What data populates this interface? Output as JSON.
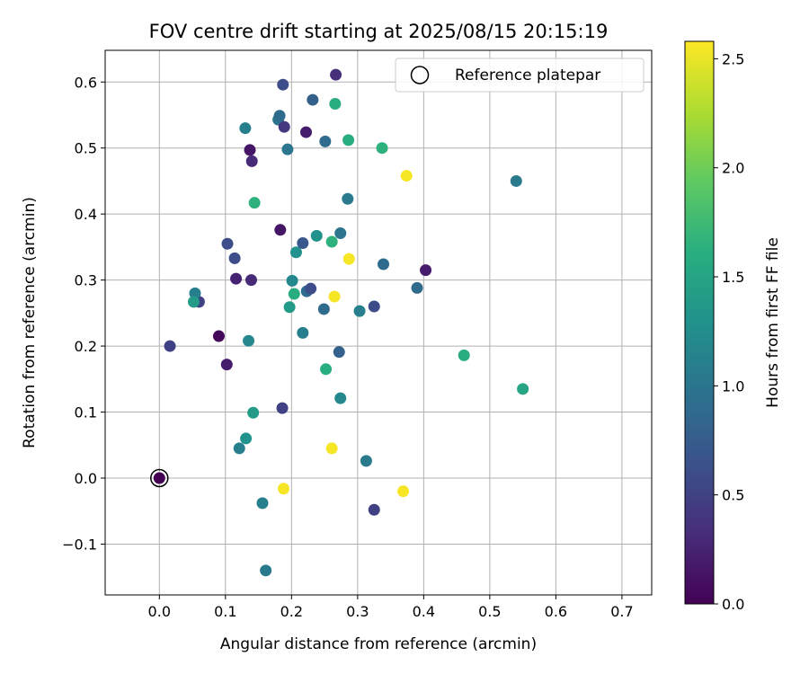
{
  "chart_data": {
    "type": "scatter",
    "title": "FOV centre drift starting at 2025/08/15 20:15:19",
    "xlabel": "Angular distance from reference (arcmin)",
    "ylabel": "Rotation from reference (arcmin)",
    "xlim": [
      -0.082,
      0.745
    ],
    "ylim": [
      -0.177,
      0.648
    ],
    "xticks": [
      "0.0",
      "0.1",
      "0.2",
      "0.3",
      "0.4",
      "0.5",
      "0.6",
      "0.7"
    ],
    "yticks": [
      "−0.1",
      "0.0",
      "0.1",
      "0.2",
      "0.3",
      "0.4",
      "0.5",
      "0.6"
    ],
    "grid": true,
    "legend": {
      "position": "top-right",
      "entries": [
        "Reference platepar"
      ]
    },
    "colorbar": {
      "label": "Hours from first FF file",
      "colormap": "viridis",
      "range": [
        0.0,
        2.58
      ],
      "ticks": [
        "0.0",
        "0.5",
        "1.0",
        "1.5",
        "2.0",
        "2.5"
      ]
    },
    "reference": {
      "x": 0.0,
      "y": 0.0,
      "c": 0.0
    },
    "points": [
      {
        "x": 0.0,
        "y": 0.0,
        "c": 0.0
      },
      {
        "x": 0.09,
        "y": 0.215,
        "c": 0.05
      },
      {
        "x": 0.016,
        "y": 0.2,
        "c": 0.5
      },
      {
        "x": 0.102,
        "y": 0.172,
        "c": 0.2
      },
      {
        "x": 0.137,
        "y": 0.497,
        "c": 0.15
      },
      {
        "x": 0.14,
        "y": 0.48,
        "c": 0.3
      },
      {
        "x": 0.116,
        "y": 0.302,
        "c": 0.25
      },
      {
        "x": 0.139,
        "y": 0.3,
        "c": 0.3
      },
      {
        "x": 0.103,
        "y": 0.355,
        "c": 0.6
      },
      {
        "x": 0.114,
        "y": 0.333,
        "c": 0.6
      },
      {
        "x": 0.06,
        "y": 0.267,
        "c": 0.5
      },
      {
        "x": 0.054,
        "y": 0.28,
        "c": 1.1
      },
      {
        "x": 0.052,
        "y": 0.267,
        "c": 1.4
      },
      {
        "x": 0.13,
        "y": 0.53,
        "c": 1.1
      },
      {
        "x": 0.144,
        "y": 0.417,
        "c": 1.65
      },
      {
        "x": 0.135,
        "y": 0.208,
        "c": 1.2
      },
      {
        "x": 0.142,
        "y": 0.099,
        "c": 1.4
      },
      {
        "x": 0.131,
        "y": 0.06,
        "c": 1.3
      },
      {
        "x": 0.121,
        "y": 0.045,
        "c": 1.1
      },
      {
        "x": 0.156,
        "y": -0.038,
        "c": 1.1
      },
      {
        "x": 0.161,
        "y": -0.14,
        "c": 1.05
      },
      {
        "x": 0.187,
        "y": 0.596,
        "c": 0.6
      },
      {
        "x": 0.18,
        "y": 0.543,
        "c": 1.0
      },
      {
        "x": 0.182,
        "y": 0.549,
        "c": 0.9
      },
      {
        "x": 0.189,
        "y": 0.532,
        "c": 0.4
      },
      {
        "x": 0.194,
        "y": 0.498,
        "c": 1.0
      },
      {
        "x": 0.183,
        "y": 0.376,
        "c": 0.15
      },
      {
        "x": 0.201,
        "y": 0.299,
        "c": 1.2
      },
      {
        "x": 0.207,
        "y": 0.342,
        "c": 1.3
      },
      {
        "x": 0.217,
        "y": 0.356,
        "c": 0.7
      },
      {
        "x": 0.204,
        "y": 0.279,
        "c": 1.6
      },
      {
        "x": 0.197,
        "y": 0.259,
        "c": 1.4
      },
      {
        "x": 0.223,
        "y": 0.283,
        "c": 0.9
      },
      {
        "x": 0.229,
        "y": 0.287,
        "c": 0.6
      },
      {
        "x": 0.217,
        "y": 0.22,
        "c": 1.1
      },
      {
        "x": 0.186,
        "y": 0.106,
        "c": 0.5
      },
      {
        "x": 0.188,
        "y": -0.016,
        "c": 2.55
      },
      {
        "x": 0.222,
        "y": 0.524,
        "c": 0.2
      },
      {
        "x": 0.232,
        "y": 0.573,
        "c": 0.8
      },
      {
        "x": 0.251,
        "y": 0.51,
        "c": 0.9
      },
      {
        "x": 0.238,
        "y": 0.367,
        "c": 1.3
      },
      {
        "x": 0.249,
        "y": 0.256,
        "c": 0.9
      },
      {
        "x": 0.252,
        "y": 0.165,
        "c": 1.6
      },
      {
        "x": 0.267,
        "y": 0.611,
        "c": 0.35
      },
      {
        "x": 0.266,
        "y": 0.567,
        "c": 1.6
      },
      {
        "x": 0.286,
        "y": 0.512,
        "c": 1.6
      },
      {
        "x": 0.285,
        "y": 0.423,
        "c": 1.05
      },
      {
        "x": 0.261,
        "y": 0.358,
        "c": 1.65
      },
      {
        "x": 0.274,
        "y": 0.371,
        "c": 1.0
      },
      {
        "x": 0.287,
        "y": 0.332,
        "c": 2.55
      },
      {
        "x": 0.265,
        "y": 0.275,
        "c": 2.55
      },
      {
        "x": 0.272,
        "y": 0.191,
        "c": 0.8
      },
      {
        "x": 0.274,
        "y": 0.121,
        "c": 1.2
      },
      {
        "x": 0.261,
        "y": 0.045,
        "c": 2.55
      },
      {
        "x": 0.303,
        "y": 0.253,
        "c": 1.1
      },
      {
        "x": 0.325,
        "y": 0.26,
        "c": 0.6
      },
      {
        "x": 0.313,
        "y": 0.026,
        "c": 1.05
      },
      {
        "x": 0.325,
        "y": -0.048,
        "c": 0.5
      },
      {
        "x": 0.337,
        "y": 0.5,
        "c": 1.65
      },
      {
        "x": 0.339,
        "y": 0.324,
        "c": 0.9
      },
      {
        "x": 0.374,
        "y": 0.458,
        "c": 2.55
      },
      {
        "x": 0.369,
        "y": -0.02,
        "c": 2.55
      },
      {
        "x": 0.39,
        "y": 0.288,
        "c": 0.9
      },
      {
        "x": 0.403,
        "y": 0.315,
        "c": 0.2
      },
      {
        "x": 0.461,
        "y": 0.186,
        "c": 1.6
      },
      {
        "x": 0.54,
        "y": 0.45,
        "c": 1.05
      },
      {
        "x": 0.55,
        "y": 0.135,
        "c": 1.5
      }
    ]
  }
}
